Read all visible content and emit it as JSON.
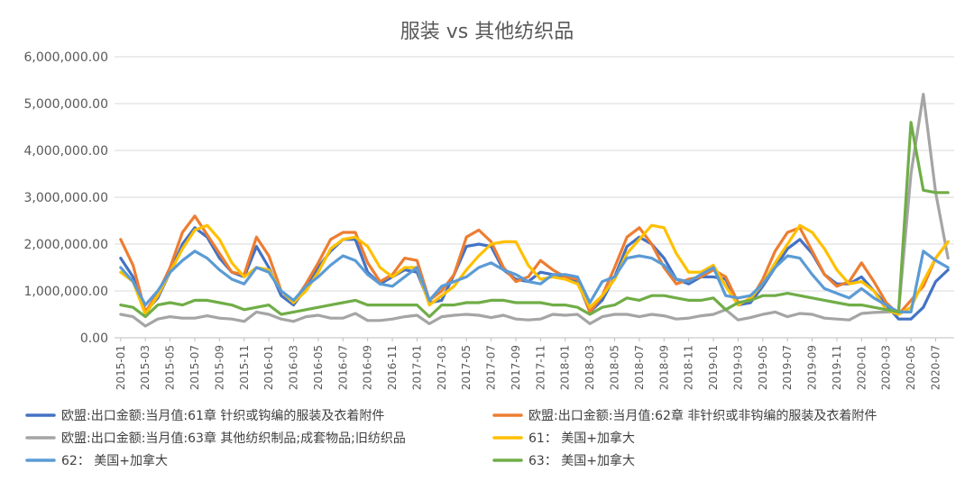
{
  "chart_data": {
    "type": "line",
    "title": "服装 vs 其他纺织品",
    "xlabel": "",
    "ylabel": "",
    "ylim": [
      0,
      6000000
    ],
    "yticks": [
      "0.00",
      "1,000,000.00",
      "2,000,000.00",
      "3,000,000.00",
      "4,000,000.00",
      "5,000,000.00",
      "6,000,000.00"
    ],
    "grid": true,
    "legend_position": "bottom",
    "x": [
      "2015-01",
      "2015-02",
      "2015-03",
      "2015-04",
      "2015-05",
      "2015-06",
      "2015-07",
      "2015-08",
      "2015-09",
      "2015-10",
      "2015-11",
      "2015-12",
      "2016-01",
      "2016-02",
      "2016-03",
      "2016-04",
      "2016-05",
      "2016-06",
      "2016-07",
      "2016-08",
      "2016-09",
      "2016-10",
      "2016-11",
      "2016-12",
      "2017-01",
      "2017-02",
      "2017-03",
      "2017-04",
      "2017-05",
      "2017-06",
      "2017-07",
      "2017-08",
      "2017-09",
      "2017-10",
      "2017-11",
      "2017-12",
      "2018-01",
      "2018-02",
      "2018-03",
      "2018-04",
      "2018-05",
      "2018-06",
      "2018-07",
      "2018-08",
      "2018-09",
      "2018-10",
      "2018-11",
      "2018-12",
      "2019-01",
      "2019-02",
      "2019-03",
      "2019-04",
      "2019-05",
      "2019-06",
      "2019-07",
      "2019-08",
      "2019-09",
      "2019-10",
      "2019-11",
      "2019-12",
      "2020-01",
      "2020-02",
      "2020-03",
      "2020-04",
      "2020-05",
      "2020-06",
      "2020-07",
      "2020-08"
    ],
    "xtick_labels": [
      "2015-01",
      "2015-03",
      "2015-05",
      "2015-07",
      "2015-09",
      "2015-11",
      "2016-01",
      "2016-03",
      "2016-05",
      "2016-07",
      "2016-09",
      "2016-11",
      "2017-01",
      "2017-03",
      "2017-05",
      "2017-07",
      "2017-09",
      "2017-11",
      "2018-01",
      "2018-03",
      "2018-05",
      "2018-07",
      "2018-09",
      "2018-11",
      "2019-01",
      "2019-03",
      "2019-05",
      "2019-07",
      "2019-09",
      "2019-11",
      "2020-01",
      "2020-03",
      "2020-05",
      "2020-07"
    ],
    "series": [
      {
        "name": "欧盟:出口金额:当月值:61章 针织或钩编的服装及衣着附件",
        "color": "#4472C4",
        "values": [
          1700000,
          1300000,
          550000,
          850000,
          1400000,
          2000000,
          2350000,
          2150000,
          1700000,
          1400000,
          1300000,
          1950000,
          1500000,
          900000,
          700000,
          1050000,
          1500000,
          1850000,
          2100000,
          2100000,
          1400000,
          1150000,
          1300000,
          1450000,
          1400000,
          750000,
          800000,
          1350000,
          1950000,
          2000000,
          1950000,
          1450000,
          1250000,
          1200000,
          1400000,
          1350000,
          1300000,
          1200000,
          550000,
          800000,
          1300000,
          1950000,
          2150000,
          2000000,
          1700000,
          1250000,
          1150000,
          1300000,
          1300000,
          1250000,
          700000,
          750000,
          1100000,
          1500000,
          1900000,
          2100000,
          1800000,
          1350000,
          1150000,
          1150000,
          1300000,
          1000000,
          700000,
          400000,
          400000,
          650000,
          1200000,
          1450000
        ]
      },
      {
        "name": "欧盟:出口金额:当月值:62章 非针织或非钩编的服装及衣着附件",
        "color": "#ED7D31",
        "values": [
          2100000,
          1550000,
          550000,
          950000,
          1500000,
          2250000,
          2600000,
          2200000,
          1800000,
          1400000,
          1350000,
          2150000,
          1750000,
          1000000,
          750000,
          1150000,
          1600000,
          2100000,
          2250000,
          2250000,
          1600000,
          1200000,
          1350000,
          1700000,
          1650000,
          800000,
          1000000,
          1350000,
          2150000,
          2300000,
          2050000,
          1500000,
          1200000,
          1300000,
          1650000,
          1450000,
          1300000,
          1250000,
          550000,
          900000,
          1500000,
          2150000,
          2350000,
          2000000,
          1500000,
          1150000,
          1250000,
          1300000,
          1450000,
          1300000,
          750000,
          800000,
          1250000,
          1850000,
          2250000,
          2350000,
          1850000,
          1350000,
          1100000,
          1200000,
          1600000,
          1200000,
          750000,
          500000,
          800000,
          1100000,
          1700000,
          2050000
        ]
      },
      {
        "name": "欧盟:出口金额:当月值:63章 其他纺织制品;成套物品;旧纺织品",
        "color": "#A5A5A5",
        "values": [
          500000,
          450000,
          250000,
          400000,
          450000,
          420000,
          420000,
          470000,
          420000,
          400000,
          350000,
          550000,
          500000,
          400000,
          350000,
          450000,
          480000,
          420000,
          420000,
          520000,
          370000,
          370000,
          400000,
          450000,
          480000,
          300000,
          450000,
          480000,
          500000,
          480000,
          430000,
          480000,
          400000,
          380000,
          400000,
          500000,
          480000,
          500000,
          300000,
          450000,
          500000,
          500000,
          450000,
          500000,
          470000,
          400000,
          420000,
          470000,
          500000,
          600000,
          380000,
          430000,
          500000,
          550000,
          450000,
          520000,
          500000,
          420000,
          400000,
          380000,
          520000,
          540000,
          550000,
          560000,
          3500000,
          5200000,
          3100000,
          1700000
        ]
      },
      {
        "name": "61： 美国+加拿大",
        "color": "#FFC000",
        "values": [
          1400000,
          1200000,
          500000,
          900000,
          1400000,
          1900000,
          2300000,
          2400000,
          2100000,
          1600000,
          1300000,
          1500000,
          1450000,
          1000000,
          750000,
          1000000,
          1400000,
          1900000,
          2100000,
          2150000,
          1950000,
          1500000,
          1300000,
          1500000,
          1500000,
          700000,
          900000,
          1100000,
          1450000,
          1750000,
          2000000,
          2050000,
          2050000,
          1550000,
          1250000,
          1300000,
          1250000,
          1150000,
          650000,
          900000,
          1250000,
          1800000,
          2100000,
          2400000,
          2350000,
          1800000,
          1400000,
          1400000,
          1550000,
          1100000,
          700000,
          850000,
          1150000,
          1600000,
          2000000,
          2400000,
          2250000,
          1900000,
          1450000,
          1150000,
          1200000,
          1000000,
          600000,
          500000,
          650000,
          1200000,
          1700000,
          2050000
        ]
      },
      {
        "name": "62： 美国+加拿大",
        "color": "#5B9BD5",
        "values": [
          1500000,
          1200000,
          700000,
          1000000,
          1400000,
          1650000,
          1850000,
          1700000,
          1450000,
          1250000,
          1150000,
          1500000,
          1400000,
          1000000,
          800000,
          1100000,
          1300000,
          1550000,
          1750000,
          1650000,
          1350000,
          1150000,
          1100000,
          1300000,
          1500000,
          800000,
          1100000,
          1200000,
          1300000,
          1500000,
          1600000,
          1450000,
          1350000,
          1200000,
          1150000,
          1350000,
          1350000,
          1300000,
          750000,
          1200000,
          1300000,
          1700000,
          1750000,
          1700000,
          1550000,
          1250000,
          1200000,
          1350000,
          1500000,
          900000,
          850000,
          900000,
          1150000,
          1500000,
          1750000,
          1700000,
          1350000,
          1050000,
          950000,
          850000,
          1050000,
          850000,
          700000,
          550000,
          550000,
          1850000,
          1650000,
          1500000
        ]
      },
      {
        "name": "63： 美国+加拿大",
        "color": "#70AD47",
        "values": [
          700000,
          650000,
          450000,
          700000,
          750000,
          700000,
          800000,
          800000,
          750000,
          700000,
          600000,
          650000,
          700000,
          500000,
          550000,
          600000,
          650000,
          700000,
          750000,
          800000,
          700000,
          700000,
          700000,
          700000,
          700000,
          450000,
          700000,
          700000,
          750000,
          750000,
          800000,
          800000,
          750000,
          750000,
          750000,
          700000,
          700000,
          650000,
          500000,
          650000,
          700000,
          850000,
          800000,
          900000,
          900000,
          850000,
          800000,
          800000,
          850000,
          600000,
          750000,
          800000,
          900000,
          900000,
          950000,
          900000,
          850000,
          800000,
          750000,
          700000,
          700000,
          650000,
          600000,
          550000,
          4600000,
          3150000,
          3100000,
          3100000
        ]
      }
    ]
  }
}
